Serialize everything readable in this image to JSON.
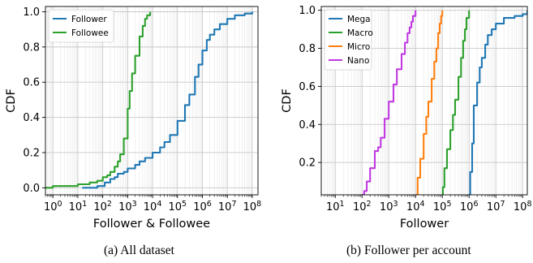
{
  "chart_data": [
    {
      "type": "line",
      "xscale": "log",
      "xlabel": "Follower & Followee",
      "ylabel": "CDF",
      "xlim": [
        0.5,
        170000000
      ],
      "ylim": [
        -0.04,
        1.03
      ],
      "grid": true,
      "legend_position": "top-left",
      "x_tick_labels": [
        "10^0",
        "10^1",
        "10^2",
        "10^3",
        "10^4",
        "10^5",
        "10^6",
        "10^7",
        "10^8"
      ],
      "y_ticks": [
        0.0,
        0.2,
        0.4,
        0.6,
        0.8,
        1.0
      ],
      "y_tick_labels": [
        "0.0",
        "0.2",
        "0.4",
        "0.6",
        "0.8",
        "1.0"
      ],
      "caption": "(a) All dataset",
      "series": [
        {
          "name": "Follower",
          "color": "#1f77b4",
          "x": [
            15,
            60,
            100,
            120,
            200,
            300,
            400,
            700,
            1000,
            2000,
            3000,
            5000,
            10000,
            20000,
            30000,
            50000,
            100000,
            200000,
            300000,
            500000,
            700000,
            1000000,
            1500000,
            2000000,
            3000000,
            5000000,
            10000000,
            20000000,
            50000000,
            100000000
          ],
          "y": [
            0.0,
            0.01,
            0.01,
            0.03,
            0.05,
            0.06,
            0.08,
            0.09,
            0.11,
            0.13,
            0.15,
            0.17,
            0.2,
            0.23,
            0.26,
            0.3,
            0.38,
            0.47,
            0.53,
            0.63,
            0.7,
            0.78,
            0.84,
            0.87,
            0.9,
            0.93,
            0.96,
            0.98,
            0.99,
            1.0
          ]
        },
        {
          "name": "Followee",
          "color": "#2ca02c",
          "x": [
            0.5,
            1,
            3,
            10,
            30,
            60,
            100,
            150,
            200,
            300,
            400,
            500,
            700,
            1000,
            1200,
            1500,
            2000,
            3000,
            4000,
            5000,
            6000,
            8000
          ],
          "y": [
            0.0,
            0.01,
            0.01,
            0.02,
            0.03,
            0.04,
            0.06,
            0.07,
            0.09,
            0.12,
            0.15,
            0.19,
            0.28,
            0.45,
            0.55,
            0.65,
            0.75,
            0.86,
            0.92,
            0.96,
            0.98,
            1.0
          ]
        }
      ]
    },
    {
      "type": "line",
      "xscale": "log",
      "xlabel": "Follower",
      "ylabel": "CDF",
      "xlim": [
        3,
        150000000
      ],
      "ylim": [
        0.03,
        1.02
      ],
      "grid": true,
      "legend_position": "top-left",
      "x_tick_labels": [
        "10^1",
        "10^2",
        "10^3",
        "10^4",
        "10^5",
        "10^6",
        "10^7",
        "10^8"
      ],
      "y_ticks": [
        0.2,
        0.4,
        0.6,
        0.8,
        1.0
      ],
      "y_tick_labels": [
        "0.2",
        "0.4",
        "0.6",
        "0.8",
        "1.0"
      ],
      "caption": "(b) Follower per account",
      "series": [
        {
          "name": "Mega",
          "color": "#1f77b4",
          "x": [
            1000000,
            1100000,
            1300000,
            1500000,
            2000000,
            2500000,
            3000000,
            4000000,
            5000000,
            7000000,
            10000000,
            20000000,
            50000000,
            100000000,
            150000000
          ],
          "y": [
            0.03,
            0.15,
            0.3,
            0.5,
            0.62,
            0.7,
            0.75,
            0.82,
            0.87,
            0.9,
            0.93,
            0.96,
            0.97,
            0.98,
            1.0
          ]
        },
        {
          "name": "Macro",
          "color": "#2ca02c",
          "x": [
            100000,
            105000,
            120000,
            150000,
            200000,
            250000,
            300000,
            400000,
            500000,
            600000,
            700000,
            800000,
            1000000
          ],
          "y": [
            0.03,
            0.07,
            0.17,
            0.27,
            0.37,
            0.45,
            0.53,
            0.65,
            0.75,
            0.84,
            0.9,
            0.96,
            1.0
          ]
        },
        {
          "name": "Micro",
          "color": "#ff7f0e",
          "x": [
            10000,
            12000,
            15000,
            20000,
            25000,
            30000,
            40000,
            50000,
            60000,
            70000,
            80000,
            90000,
            100000
          ],
          "y": [
            0.03,
            0.12,
            0.22,
            0.35,
            0.44,
            0.52,
            0.64,
            0.73,
            0.8,
            0.88,
            0.93,
            0.97,
            1.0
          ]
        },
        {
          "name": "Nano",
          "color": "#c039e0",
          "x": [
            100,
            120,
            150,
            200,
            300,
            400,
            500,
            700,
            1000,
            1500,
            2000,
            3000,
            4000,
            5000,
            6000,
            7000,
            8000,
            10000
          ],
          "y": [
            0.03,
            0.05,
            0.1,
            0.17,
            0.26,
            0.28,
            0.33,
            0.43,
            0.52,
            0.61,
            0.69,
            0.77,
            0.83,
            0.88,
            0.91,
            0.94,
            0.97,
            1.0
          ]
        }
      ]
    }
  ]
}
